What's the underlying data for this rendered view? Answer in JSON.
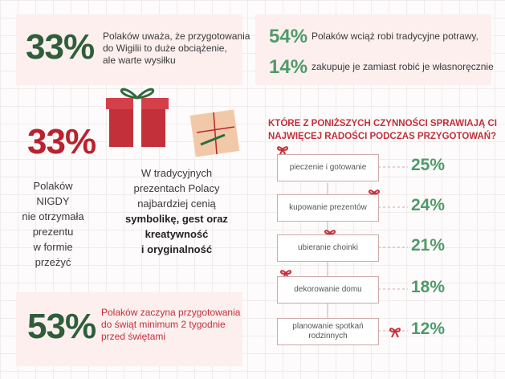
{
  "stat_top_left": {
    "value": "33%",
    "lines": [
      "Polaków uważa, że przygotowania",
      "do Wigilii to duże obciążenie,",
      "ale warte wysiłku"
    ]
  },
  "stat_top_right": [
    {
      "value": "54%",
      "text": "Polaków wciąż robi tradycyjne potrawy,"
    },
    {
      "value": "14%",
      "text": "zakupuje je zamiast robić je własnoręcznie"
    }
  ],
  "stat_middle_left": {
    "value": "33%",
    "lines": [
      "Polaków NIGDY",
      "nie otrzymała",
      "prezentu",
      "w formie",
      "przeżyć"
    ]
  },
  "gifts_text": {
    "lines": [
      "W tradycyjnych",
      "prezentach Polacy",
      "najbardziej cenią"
    ],
    "bold_lines": [
      "symbolikę, gest oraz",
      "kreatywność",
      "i oryginalność"
    ]
  },
  "stat_bottom_left": {
    "value": "53%",
    "lines": [
      "Polaków zaczyna przygotowania",
      "do świąt minimum 2 tygodnie",
      "przed świętami"
    ]
  },
  "survey": {
    "question": [
      "KTÓRE Z PONIŻSZYCH CZYNNOŚCI SPRAWIAJĄ CI",
      "NAJWIĘCEJ RADOŚCI PODCZAS PRZYGOTOWAŃ?"
    ],
    "items": [
      {
        "label": [
          "pieczenie i gotowanie"
        ],
        "value": "25%"
      },
      {
        "label": [
          "kupowanie prezentów"
        ],
        "value": "24%"
      },
      {
        "label": [
          "ubieranie choinki"
        ],
        "value": "21%"
      },
      {
        "label": [
          "dekorowanie domu"
        ],
        "value": "18%"
      },
      {
        "label": [
          "planowanie spotkań",
          "rodzinnych"
        ],
        "value": "12%"
      }
    ]
  }
}
